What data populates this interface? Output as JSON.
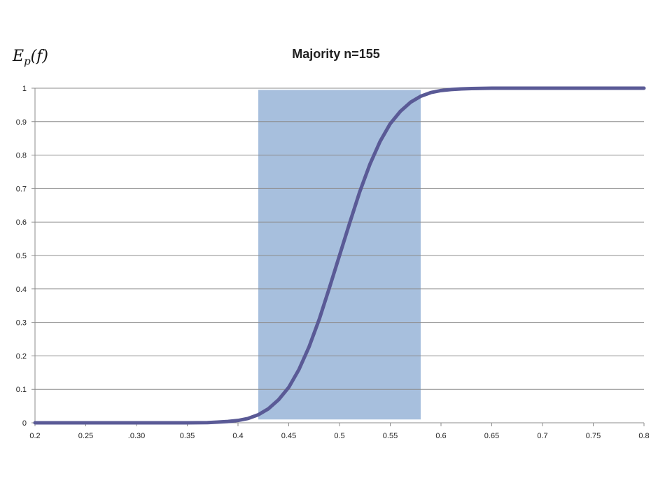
{
  "chart_data": {
    "type": "line",
    "title": "Majority n=155",
    "ylabel": {
      "base": "E",
      "sub": "p",
      "arg": "(f)"
    },
    "xlabel": "",
    "x_ticks": [
      "0.2",
      "0.25",
      ".0.30",
      "0.35",
      "0.4",
      "0.45",
      "0.5",
      "0.55",
      "0.6",
      "0.65",
      "0.7",
      "0.75",
      "0.8"
    ],
    "y_ticks": [
      "0",
      "0.1",
      "0.2",
      "0.3",
      "0.4",
      "0.5",
      "0.6",
      "0.7",
      "0.8",
      "0.9",
      "1"
    ],
    "xlim": [
      0.2,
      0.8
    ],
    "ylim": [
      0,
      1
    ],
    "grid": "horizontal",
    "highlight_band": {
      "x_start": 0.42,
      "x_end": 0.58,
      "y_start": 0.01,
      "y_end": 0.995,
      "color": "#a7bfdd"
    },
    "series": [
      {
        "color": "#5a5a96",
        "x": [
          0.2,
          0.25,
          0.3,
          0.35,
          0.37,
          0.38,
          0.39,
          0.4,
          0.41,
          0.42,
          0.43,
          0.44,
          0.45,
          0.46,
          0.47,
          0.48,
          0.49,
          0.5,
          0.51,
          0.52,
          0.53,
          0.54,
          0.55,
          0.56,
          0.57,
          0.58,
          0.59,
          0.6,
          0.61,
          0.62,
          0.63,
          0.65,
          0.7,
          0.75,
          0.8
        ],
        "y": [
          0,
          0,
          0,
          0,
          0.0005,
          0.002,
          0.004,
          0.007,
          0.013,
          0.024,
          0.042,
          0.069,
          0.106,
          0.159,
          0.227,
          0.309,
          0.403,
          0.5,
          0.597,
          0.691,
          0.773,
          0.841,
          0.894,
          0.931,
          0.958,
          0.976,
          0.987,
          0.993,
          0.996,
          0.998,
          0.999,
          1,
          1,
          1,
          1
        ]
      }
    ]
  }
}
